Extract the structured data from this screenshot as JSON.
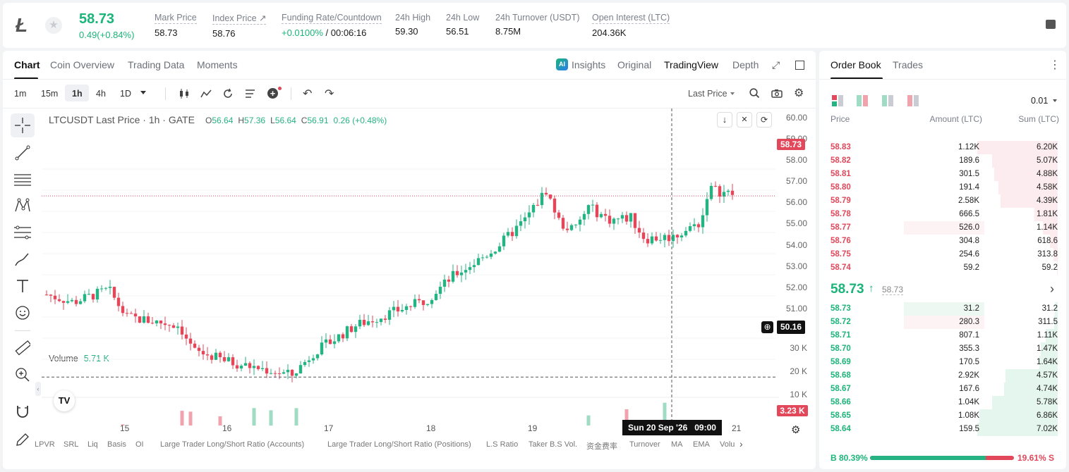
{
  "header": {
    "price": "58.73",
    "change": "0.49(+0.84%)",
    "stats": [
      {
        "label": "Mark Price",
        "value": "58.73"
      },
      {
        "label": "Index Price ↗",
        "value": "58.76"
      },
      {
        "label": "Funding Rate/Countdown",
        "value_green": "+0.0100%",
        "value": " / 00:06:16"
      },
      {
        "label": "24h High",
        "value": "59.30"
      },
      {
        "label": "24h Low",
        "value": "56.51"
      },
      {
        "label": "24h Turnover (USDT)",
        "value": "8.75M"
      },
      {
        "label": "Open Interest (LTC)",
        "value": "204.36K"
      }
    ]
  },
  "chart_tabs": [
    "Chart",
    "Coin Overview",
    "Trading Data",
    "Moments"
  ],
  "view_tabs": [
    "Insights",
    "Original",
    "TradingView",
    "Depth"
  ],
  "intervals": [
    "1m",
    "15m",
    "1h",
    "4h",
    "1D"
  ],
  "price_type": "Last Price",
  "legend": {
    "symbol": "LTCUSDT Last Price · 1h · GATE",
    "o_label": "O",
    "o": "56.64",
    "h_label": "H",
    "h": "57.36",
    "l_label": "L",
    "l": "56.64",
    "c_label": "C",
    "c": "56.91",
    "chg": "0.26 (+0.48%)"
  },
  "volume_legend": {
    "label": "Volume",
    "value": "5.71 K"
  },
  "price_axis": [
    "60.00",
    "59.00",
    "58.00",
    "57.00",
    "56.00",
    "55.00",
    "54.00",
    "53.00",
    "52.00",
    "51.00",
    "30 K",
    "20 K",
    "10 K"
  ],
  "last_price_tag": "58.73",
  "cross_price_tag": "50.16",
  "volume_tag": "3.23 K",
  "time_axis": [
    "15",
    "16",
    "17",
    "18",
    "19",
    "21"
  ],
  "crosshair_time": "Sun 20 Sep '26   09:00",
  "indicators": [
    "LPVR",
    "SRL",
    "Liq",
    "Basis",
    "OI",
    "Large Trader Long/Short Ratio (Accounts)",
    "Large Trader Long/Short Ratio (Positions)",
    "L.S Ratio",
    "Taker B.S Vol.",
    "资金费率",
    "Turnover",
    "MA",
    "EMA",
    "Volu"
  ],
  "orderbook": {
    "tabs": [
      "Order Book",
      "Trades"
    ],
    "precision": "0.01",
    "headers": [
      "Price",
      "Amount (LTC)",
      "Sum (LTC)"
    ],
    "asks": [
      {
        "price": "58.83",
        "amount": "1.12K",
        "sum": "6.20K",
        "af": 0.0,
        "sf": 1.0
      },
      {
        "price": "58.82",
        "amount": "189.6",
        "sum": "5.07K",
        "af": 0.0,
        "sf": 0.82
      },
      {
        "price": "58.81",
        "amount": "301.5",
        "sum": "4.88K",
        "af": 0.0,
        "sf": 0.79
      },
      {
        "price": "58.80",
        "amount": "191.4",
        "sum": "4.58K",
        "af": 0.0,
        "sf": 0.74
      },
      {
        "price": "58.79",
        "amount": "2.58K",
        "sum": "4.39K",
        "af": 0.0,
        "sf": 0.71
      },
      {
        "price": "58.78",
        "amount": "666.5",
        "sum": "1.81K",
        "af": 0.0,
        "sf": 0.29
      },
      {
        "price": "58.77",
        "amount": "526.0",
        "sum": "1.14K",
        "af": 1.0,
        "sf": 0.18
      },
      {
        "price": "58.76",
        "amount": "304.8",
        "sum": "618.6",
        "af": 0.0,
        "sf": 0.1
      },
      {
        "price": "58.75",
        "amount": "254.6",
        "sum": "313.8",
        "af": 0.0,
        "sf": 0.05
      },
      {
        "price": "58.74",
        "amount": "59.2",
        "sum": "59.2",
        "af": 0.0,
        "sf": 0.01
      }
    ],
    "mid_price": "58.73",
    "mid_mark": "58.73",
    "bids": [
      {
        "price": "58.73",
        "amount": "31.2",
        "sum": "31.2",
        "sf": 0.005
      },
      {
        "price": "58.72",
        "amount": "280.3",
        "sum": "311.5",
        "sf": 0.04
      },
      {
        "price": "58.71",
        "amount": "807.1",
        "sum": "1.11K",
        "sf": 0.15
      },
      {
        "price": "58.70",
        "amount": "355.3",
        "sum": "1.47K",
        "sf": 0.21
      },
      {
        "price": "58.69",
        "amount": "170.5",
        "sum": "1.64K",
        "sf": 0.23
      },
      {
        "price": "58.68",
        "amount": "2.92K",
        "sum": "4.57K",
        "sf": 0.65
      },
      {
        "price": "58.67",
        "amount": "167.6",
        "sum": "4.74K",
        "sf": 0.67
      },
      {
        "price": "58.66",
        "amount": "1.04K",
        "sum": "5.78K",
        "sf": 0.82
      },
      {
        "price": "58.65",
        "amount": "1.08K",
        "sum": "6.86K",
        "sf": 0.97
      },
      {
        "price": "58.64",
        "amount": "159.5",
        "sum": "7.02K",
        "sf": 1.0
      }
    ],
    "buy_ratio": "B 80.39%",
    "sell_ratio": "19.61% S",
    "buy_fraction": 0.8039
  },
  "colors": {
    "up": "#26b383",
    "down": "#e2475a",
    "upVol": "#9fdcc3",
    "downVol": "#f0a3ad"
  },
  "chart_data": {
    "type": "candlestick",
    "symbol": "LTCUSDT",
    "interval": "1h",
    "ylim": [
      50.0,
      60.3
    ],
    "candles": []
  }
}
